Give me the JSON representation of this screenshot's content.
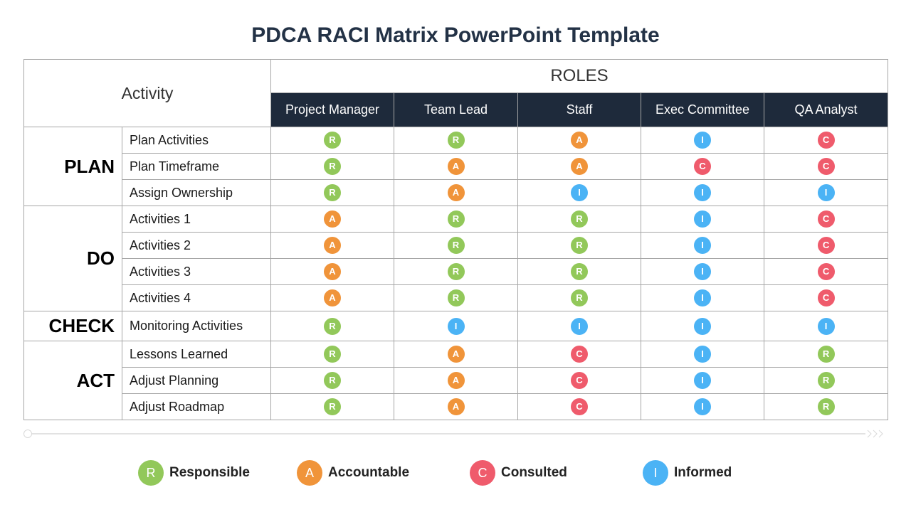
{
  "title": "PDCA RACI Matrix PowerPoint Template",
  "header": {
    "activity": "Activity",
    "roles_label": "ROLES",
    "roles": [
      "Project Manager",
      "Team Lead",
      "Staff",
      "Exec Committee",
      "QA Analyst"
    ]
  },
  "colors": {
    "R": "#92c85a",
    "A": "#f0943a",
    "C": "#ef5b6c",
    "I": "#4bb3f5",
    "header_bg": "#1e2a3b",
    "title": "#233246"
  },
  "groups": [
    {
      "name": "PLAN",
      "rows": [
        {
          "activity": "Plan Activities",
          "values": [
            "R",
            "R",
            "A",
            "I",
            "C"
          ]
        },
        {
          "activity": "Plan Timeframe",
          "values": [
            "R",
            "A",
            "A",
            "C",
            "C"
          ]
        },
        {
          "activity": "Assign Ownership",
          "values": [
            "R",
            "A",
            "I",
            "I",
            "I"
          ]
        }
      ]
    },
    {
      "name": "DO",
      "rows": [
        {
          "activity": "Activities 1",
          "values": [
            "A",
            "R",
            "R",
            "I",
            "C"
          ]
        },
        {
          "activity": "Activities 2",
          "values": [
            "A",
            "R",
            "R",
            "I",
            "C"
          ]
        },
        {
          "activity": "Activities 3",
          "values": [
            "A",
            "R",
            "R",
            "I",
            "C"
          ]
        },
        {
          "activity": "Activities 4",
          "values": [
            "A",
            "R",
            "R",
            "I",
            "C"
          ]
        }
      ]
    },
    {
      "name": "CHECK",
      "rows": [
        {
          "activity": "Monitoring Activities",
          "values": [
            "R",
            "I",
            "I",
            "I",
            "I"
          ]
        }
      ]
    },
    {
      "name": "ACT",
      "rows": [
        {
          "activity": "Lessons Learned",
          "values": [
            "R",
            "A",
            "C",
            "I",
            "R"
          ]
        },
        {
          "activity": "Adjust Planning",
          "values": [
            "R",
            "A",
            "C",
            "I",
            "R"
          ]
        },
        {
          "activity": "Adjust Roadmap",
          "values": [
            "R",
            "A",
            "C",
            "I",
            "R"
          ]
        }
      ]
    }
  ],
  "legend": [
    {
      "letter": "R",
      "label": "Responsible"
    },
    {
      "letter": "A",
      "label": "Accountable"
    },
    {
      "letter": "C",
      "label": "Consulted"
    },
    {
      "letter": "I",
      "label": "Informed"
    }
  ]
}
